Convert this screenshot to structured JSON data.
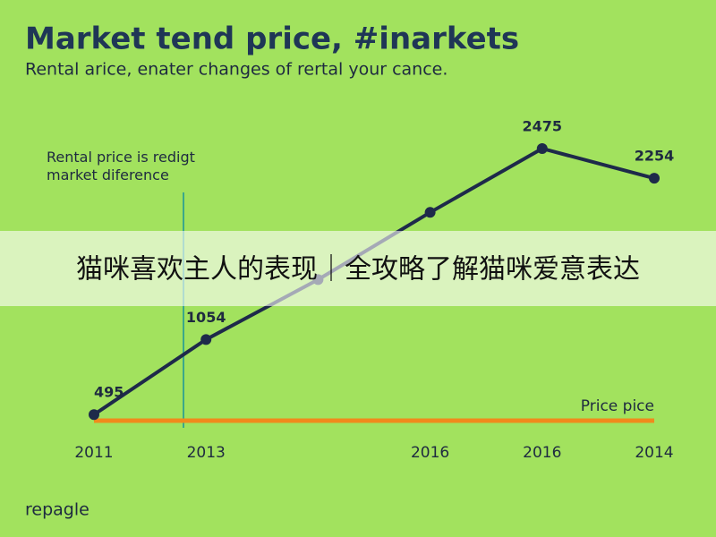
{
  "chart_data": {
    "type": "line",
    "title": "Market tend price, #inarkets",
    "subtitle": "Rental arice, enater changes of rertal your cance.",
    "annotation": "Rental price is redigt\nmarket diference",
    "categories": [
      "2011",
      "2013",
      null,
      "2016",
      "2016",
      "2014"
    ],
    "values": [
      495,
      1054,
      1500,
      2000,
      2475,
      2254
    ],
    "value_labels": [
      "495",
      "1054",
      null,
      null,
      "2475",
      "2254"
    ],
    "color": "#1e2a4a",
    "reference_line": {
      "label": "Price pice",
      "value": 450,
      "color": "#f08a1c"
    },
    "banner": "猫咪喜欢主人的表现｜全攻略了解猫咪爱意表达",
    "footer": "repagle"
  }
}
